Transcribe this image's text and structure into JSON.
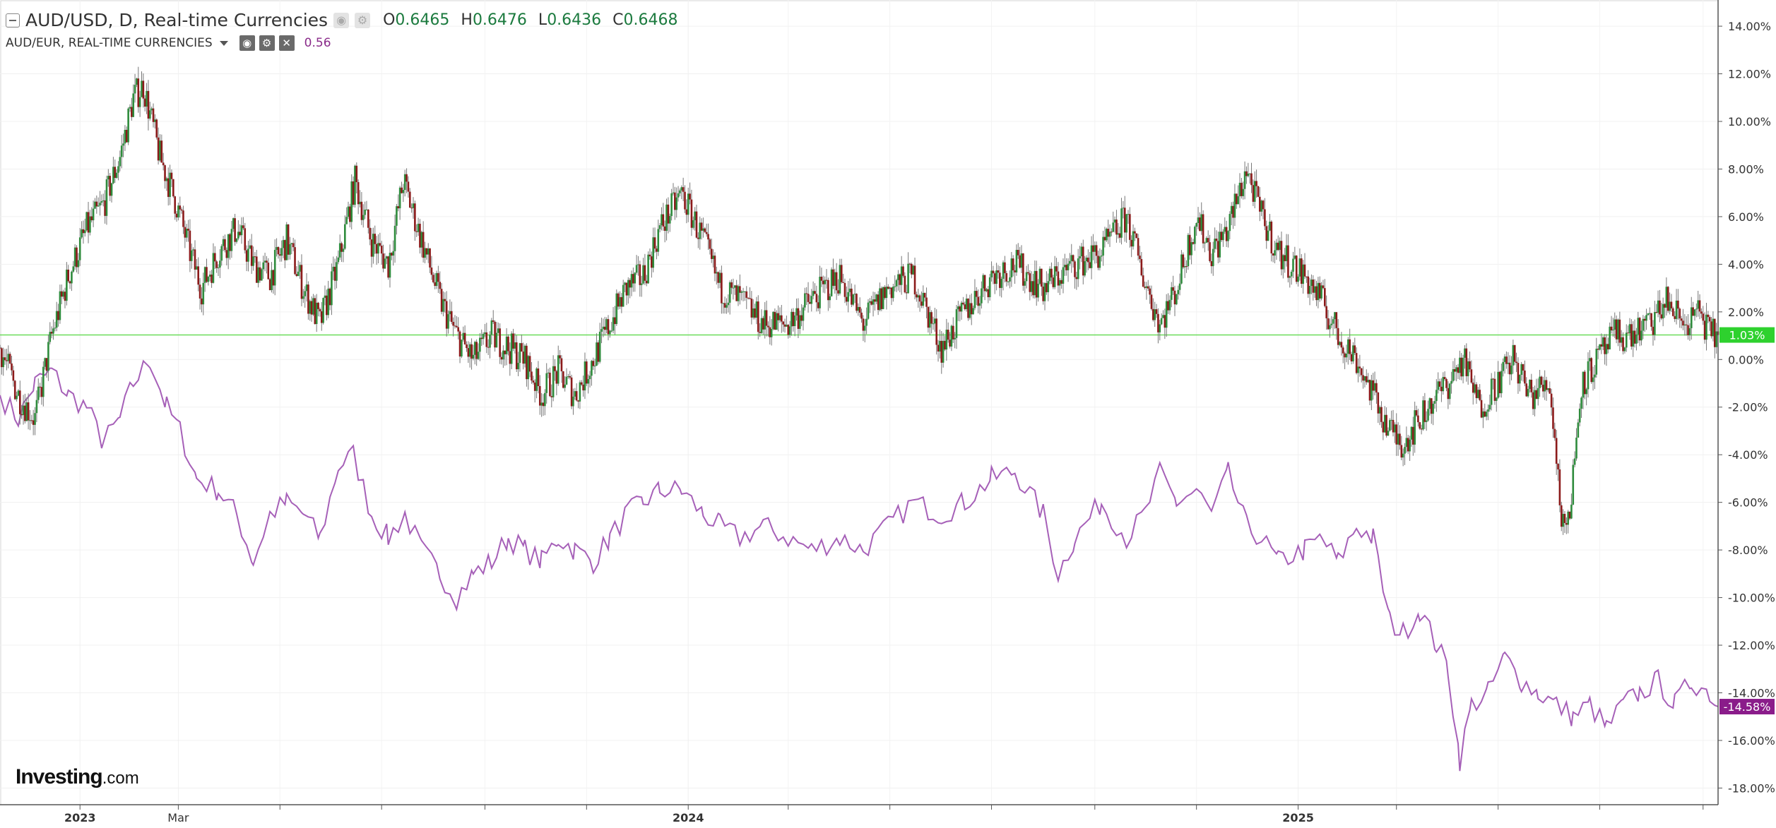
{
  "header": {
    "title": "AUD/USD, D, Real-time Currencies",
    "ohlc": [
      {
        "label": "O",
        "value": "0.6465"
      },
      {
        "label": "H",
        "value": "0.6476"
      },
      {
        "label": "L",
        "value": "0.6436"
      },
      {
        "label": "C",
        "value": "0.6468"
      }
    ]
  },
  "compare": {
    "label": "AUD/EUR, REAL-TIME CURRENCIES",
    "value": "0.56"
  },
  "logo": {
    "name": "Investing",
    "suffix": ".com"
  },
  "colors": {
    "up_candle": "#2e8b3c",
    "down_candle": "#8b1a1a",
    "compare_line": "#a660b8",
    "price_line": "#6bdc5a",
    "price_badge": "#2ed12e",
    "compare_badge": "#8a1c8a"
  },
  "chart_data": {
    "type": "line",
    "y_unit": "percent change",
    "y_ticks": [
      "14.00%",
      "12.00%",
      "10.00%",
      "8.00%",
      "6.00%",
      "4.00%",
      "2.00%",
      "0.00%",
      "-2.00%",
      "-4.00%",
      "-6.00%",
      "-8.00%",
      "-10.00%",
      "-12.00%",
      "-14.00%",
      "-16.00%",
      "-18.00%"
    ],
    "ylim": [
      -18.7,
      15.1
    ],
    "x_range": [
      "2022-11-14",
      "2025-09-10"
    ],
    "x_tick_labels": [
      {
        "date": "2023-01-01",
        "label": "2023",
        "bold": true
      },
      {
        "date": "2023-03-01",
        "label": "Mar",
        "bold": false
      },
      {
        "date": "2024-01-01",
        "label": "2024",
        "bold": true
      },
      {
        "date": "2025-01-01",
        "label": "2025",
        "bold": true
      }
    ],
    "x_minor_ticks": [
      "2023-05-01",
      "2023-07-01",
      "2023-09-01",
      "2023-11-01",
      "2024-03-01",
      "2024-05-01",
      "2024-07-01",
      "2024-09-01",
      "2024-11-01",
      "2025-03-01",
      "2025-05-01",
      "2025-07-01",
      "2025-09-01"
    ],
    "grid": true,
    "last_values": [
      {
        "series": "AUD/USD",
        "label": "1.03%",
        "value": 1.03
      },
      {
        "series": "AUD/EUR",
        "label": "-14.58%",
        "value": -14.58
      }
    ],
    "series": [
      {
        "name": "AUD/USD",
        "style": "candlestick",
        "points": [
          [
            "2022-11-14",
            0.5
          ],
          [
            "2022-11-25",
            -1.5
          ],
          [
            "2022-12-05",
            -2.5
          ],
          [
            "2022-12-15",
            1.0
          ],
          [
            "2022-12-25",
            3.5
          ],
          [
            "2023-01-05",
            5.5
          ],
          [
            "2023-01-15",
            6.5
          ],
          [
            "2023-01-25",
            8.5
          ],
          [
            "2023-02-02",
            11.0
          ],
          [
            "2023-02-08",
            11.5
          ],
          [
            "2023-02-18",
            8.5
          ],
          [
            "2023-02-28",
            6.5
          ],
          [
            "2023-03-08",
            4.5
          ],
          [
            "2023-03-15",
            3.0
          ],
          [
            "2023-03-25",
            4.5
          ],
          [
            "2023-04-05",
            5.5
          ],
          [
            "2023-04-15",
            4.0
          ],
          [
            "2023-04-25",
            3.5
          ],
          [
            "2023-05-05",
            5.0
          ],
          [
            "2023-05-15",
            3.0
          ],
          [
            "2023-05-25",
            1.5
          ],
          [
            "2023-06-05",
            4.0
          ],
          [
            "2023-06-15",
            7.5
          ],
          [
            "2023-06-25",
            5.0
          ],
          [
            "2023-07-05",
            4.0
          ],
          [
            "2023-07-14",
            7.5
          ],
          [
            "2023-07-25",
            5.0
          ],
          [
            "2023-08-05",
            2.5
          ],
          [
            "2023-08-15",
            1.0
          ],
          [
            "2023-08-25",
            0.0
          ],
          [
            "2023-09-05",
            1.0
          ],
          [
            "2023-09-15",
            0.5
          ],
          [
            "2023-09-25",
            0.0
          ],
          [
            "2023-10-05",
            -1.5
          ],
          [
            "2023-10-15",
            -0.5
          ],
          [
            "2023-10-25",
            -1.5
          ],
          [
            "2023-11-05",
            0.0
          ],
          [
            "2023-11-15",
            1.5
          ],
          [
            "2023-11-25",
            3.0
          ],
          [
            "2023-12-05",
            3.5
          ],
          [
            "2023-12-15",
            5.5
          ],
          [
            "2023-12-28",
            7.0
          ],
          [
            "2024-01-10",
            5.0
          ],
          [
            "2024-01-20",
            3.0
          ],
          [
            "2024-02-01",
            2.5
          ],
          [
            "2024-02-15",
            1.5
          ],
          [
            "2024-03-01",
            1.5
          ],
          [
            "2024-03-15",
            2.5
          ],
          [
            "2024-04-01",
            3.5
          ],
          [
            "2024-04-15",
            1.5
          ],
          [
            "2024-04-30",
            3.0
          ],
          [
            "2024-05-15",
            3.5
          ],
          [
            "2024-06-01",
            0.5
          ],
          [
            "2024-06-15",
            2.0
          ],
          [
            "2024-07-01",
            3.5
          ],
          [
            "2024-07-15",
            4.0
          ],
          [
            "2024-08-01",
            3.0
          ],
          [
            "2024-08-10",
            3.5
          ],
          [
            "2024-08-20",
            4.0
          ],
          [
            "2024-09-05",
            4.5
          ],
          [
            "2024-09-20",
            6.0
          ],
          [
            "2024-09-30",
            3.5
          ],
          [
            "2024-10-10",
            1.5
          ],
          [
            "2024-10-20",
            3.0
          ],
          [
            "2024-11-01",
            6.0
          ],
          [
            "2024-11-10",
            4.5
          ],
          [
            "2024-11-20",
            5.5
          ],
          [
            "2024-12-01",
            8.0
          ],
          [
            "2024-12-10",
            6.0
          ],
          [
            "2024-12-20",
            4.5
          ],
          [
            "2025-01-05",
            3.5
          ],
          [
            "2025-01-15",
            2.5
          ],
          [
            "2025-01-25",
            1.0
          ],
          [
            "2025-02-05",
            0.0
          ],
          [
            "2025-02-15",
            -1.5
          ],
          [
            "2025-02-25",
            -3.0
          ],
          [
            "2025-03-05",
            -3.5
          ],
          [
            "2025-03-15",
            -2.5
          ],
          [
            "2025-03-25",
            -1.5
          ],
          [
            "2025-04-01",
            -1.0
          ],
          [
            "2025-04-10",
            0.0
          ],
          [
            "2025-04-20",
            -2.0
          ],
          [
            "2025-04-30",
            -1.0
          ],
          [
            "2025-05-10",
            0.0
          ],
          [
            "2025-05-20",
            -1.5
          ],
          [
            "2025-06-01",
            -1.0
          ],
          [
            "2025-06-08",
            -6.5
          ],
          [
            "2025-06-12",
            -7.0
          ],
          [
            "2025-06-20",
            -1.0
          ],
          [
            "2025-06-30",
            0.0
          ],
          [
            "2025-07-10",
            1.0
          ],
          [
            "2025-07-20",
            1.0
          ],
          [
            "2025-08-01",
            1.5
          ],
          [
            "2025-08-10",
            2.5
          ],
          [
            "2025-08-20",
            1.5
          ],
          [
            "2025-08-30",
            2.0
          ],
          [
            "2025-09-05",
            1.0
          ],
          [
            "2025-09-10",
            1.03
          ]
        ]
      },
      {
        "name": "AUD/EUR",
        "style": "line",
        "points": [
          [
            "2022-11-14",
            -1.5
          ],
          [
            "2022-11-25",
            -2.5
          ],
          [
            "2022-12-05",
            -1.0
          ],
          [
            "2022-12-15",
            -0.5
          ],
          [
            "2022-12-25",
            -1.5
          ],
          [
            "2023-01-05",
            -2.0
          ],
          [
            "2023-01-15",
            -3.5
          ],
          [
            "2023-01-25",
            -2.5
          ],
          [
            "2023-02-02",
            -1.0
          ],
          [
            "2023-02-12",
            0.0
          ],
          [
            "2023-02-22",
            -2.0
          ],
          [
            "2023-03-02",
            -3.0
          ],
          [
            "2023-03-12",
            -5.0
          ],
          [
            "2023-03-25",
            -5.5
          ],
          [
            "2023-04-05",
            -6.5
          ],
          [
            "2023-04-15",
            -8.5
          ],
          [
            "2023-04-25",
            -6.5
          ],
          [
            "2023-05-05",
            -6.0
          ],
          [
            "2023-05-15",
            -6.5
          ],
          [
            "2023-05-25",
            -7.5
          ],
          [
            "2023-06-05",
            -4.5
          ],
          [
            "2023-06-14",
            -4.0
          ],
          [
            "2023-06-25",
            -6.5
          ],
          [
            "2023-07-05",
            -7.5
          ],
          [
            "2023-07-15",
            -6.5
          ],
          [
            "2023-07-25",
            -8.0
          ],
          [
            "2023-08-05",
            -9.0
          ],
          [
            "2023-08-15",
            -10.0
          ],
          [
            "2023-08-25",
            -9.0
          ],
          [
            "2023-09-05",
            -8.5
          ],
          [
            "2023-09-15",
            -7.5
          ],
          [
            "2023-09-25",
            -8.0
          ],
          [
            "2023-10-05",
            -8.5
          ],
          [
            "2023-10-15",
            -7.5
          ],
          [
            "2023-10-25",
            -8.0
          ],
          [
            "2023-11-05",
            -8.5
          ],
          [
            "2023-11-15",
            -7.5
          ],
          [
            "2023-11-25",
            -6.5
          ],
          [
            "2023-12-05",
            -6.0
          ],
          [
            "2023-12-15",
            -5.5
          ],
          [
            "2023-12-28",
            -5.5
          ],
          [
            "2024-01-10",
            -6.5
          ],
          [
            "2024-01-20",
            -7.0
          ],
          [
            "2024-02-01",
            -7.5
          ],
          [
            "2024-02-15",
            -7.0
          ],
          [
            "2024-03-01",
            -7.5
          ],
          [
            "2024-03-15",
            -8.0
          ],
          [
            "2024-04-01",
            -7.5
          ],
          [
            "2024-04-15",
            -8.0
          ],
          [
            "2024-04-30",
            -7.0
          ],
          [
            "2024-05-15",
            -6.0
          ],
          [
            "2024-06-01",
            -6.5
          ],
          [
            "2024-06-15",
            -6.0
          ],
          [
            "2024-07-01",
            -5.0
          ],
          [
            "2024-07-15",
            -4.7
          ],
          [
            "2024-08-01",
            -6.5
          ],
          [
            "2024-08-10",
            -9.0
          ],
          [
            "2024-08-20",
            -7.5
          ],
          [
            "2024-09-05",
            -6.0
          ],
          [
            "2024-09-20",
            -7.5
          ],
          [
            "2024-10-01",
            -6.5
          ],
          [
            "2024-10-10",
            -4.8
          ],
          [
            "2024-10-20",
            -6.0
          ],
          [
            "2024-11-01",
            -5.5
          ],
          [
            "2024-11-10",
            -6.5
          ],
          [
            "2024-11-20",
            -4.8
          ],
          [
            "2024-12-01",
            -7.0
          ],
          [
            "2024-12-10",
            -7.5
          ],
          [
            "2024-12-20",
            -8.5
          ],
          [
            "2025-01-05",
            -8.0
          ],
          [
            "2025-01-15",
            -7.5
          ],
          [
            "2025-01-25",
            -8.5
          ],
          [
            "2025-02-05",
            -7.0
          ],
          [
            "2025-02-15",
            -7.5
          ],
          [
            "2025-02-25",
            -11.0
          ],
          [
            "2025-03-05",
            -11.5
          ],
          [
            "2025-03-15",
            -10.5
          ],
          [
            "2025-03-25",
            -12.0
          ],
          [
            "2025-04-01",
            -13.0
          ],
          [
            "2025-04-08",
            -16.8
          ],
          [
            "2025-04-15",
            -14.5
          ],
          [
            "2025-04-25",
            -14.0
          ],
          [
            "2025-05-05",
            -12.5
          ],
          [
            "2025-05-15",
            -13.5
          ],
          [
            "2025-05-25",
            -14.0
          ],
          [
            "2025-06-05",
            -14.5
          ],
          [
            "2025-06-15",
            -15.0
          ],
          [
            "2025-06-25",
            -14.5
          ],
          [
            "2025-07-05",
            -15.5
          ],
          [
            "2025-07-15",
            -14.5
          ],
          [
            "2025-07-25",
            -14.0
          ],
          [
            "2025-08-05",
            -13.5
          ],
          [
            "2025-08-15",
            -14.5
          ],
          [
            "2025-08-25",
            -13.5
          ],
          [
            "2025-09-05",
            -14.0
          ],
          [
            "2025-09-10",
            -14.58
          ]
        ]
      }
    ]
  }
}
